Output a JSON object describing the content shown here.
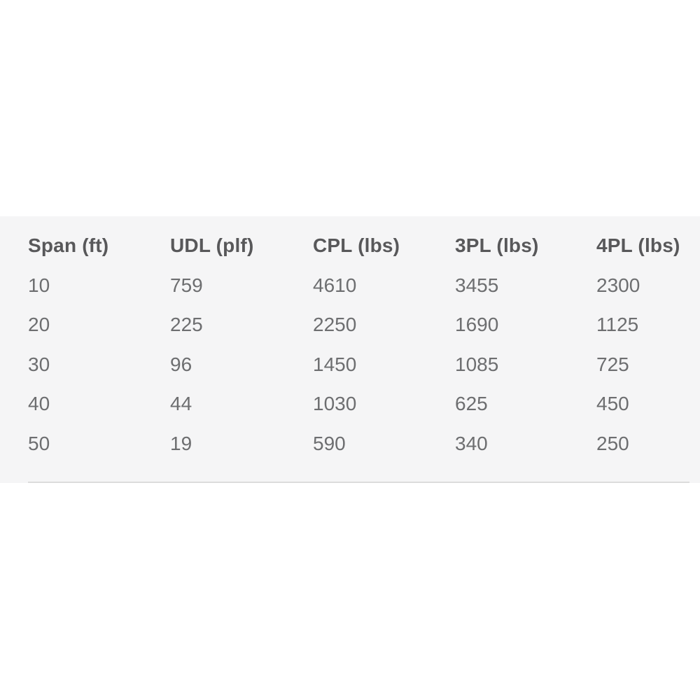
{
  "chart_data": {
    "type": "table",
    "columns": [
      "Span (ft)",
      "UDL (plf)",
      "CPL (lbs)",
      "3PL (lbs)",
      "4PL (lbs)"
    ],
    "rows": [
      [
        "10",
        "759",
        "4610",
        "3455",
        "2300"
      ],
      [
        "20",
        "225",
        "2250",
        "1690",
        "1125"
      ],
      [
        "30",
        "96",
        "1450",
        "1085",
        "725"
      ],
      [
        "40",
        "44",
        "1030",
        "625",
        "450"
      ],
      [
        "50",
        "19",
        "590",
        "340",
        "250"
      ]
    ],
    "layout": {
      "grid": "off",
      "row_dividers": "none",
      "bottom_divider": true
    }
  },
  "colors": {
    "page_background": "#ffffff",
    "panel_background": "#f5f5f6",
    "header_text": "#58585a",
    "body_text": "#6d6e70",
    "divider": "#dcdcdc"
  }
}
